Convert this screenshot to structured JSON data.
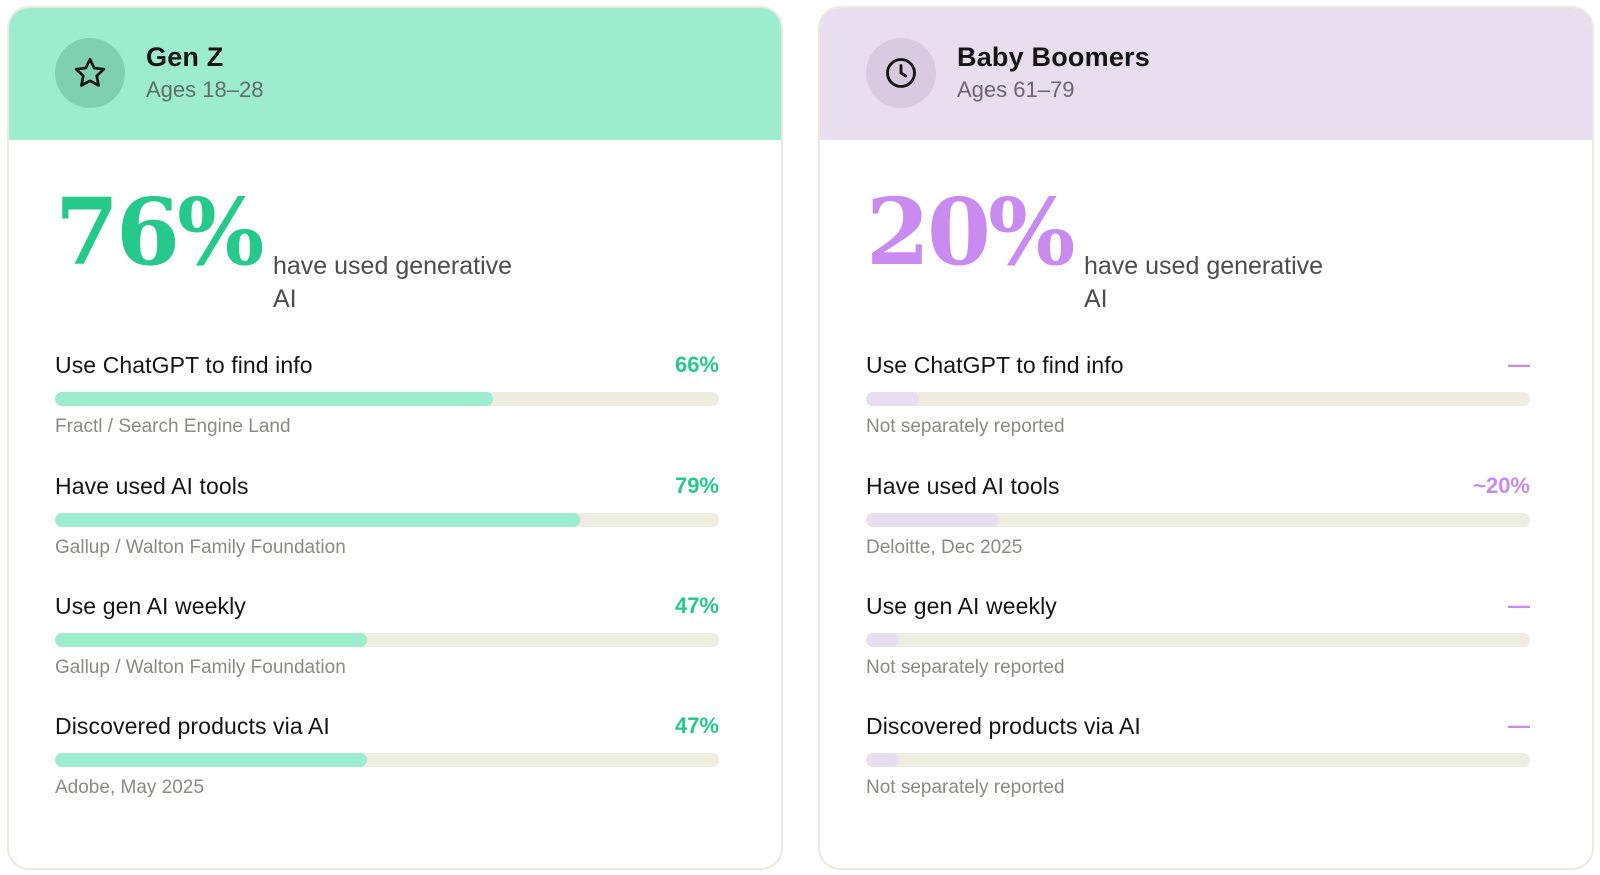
{
  "cards": [
    {
      "id": "genz",
      "icon": "star-icon",
      "title": "Gen Z",
      "subtitle": "Ages 18–28",
      "big_value": "76%",
      "big_caption": "have used generative AI",
      "accent": "#25c98b",
      "header_bg": "#9deccf",
      "metrics": [
        {
          "label": "Use ChatGPT to find info",
          "value": "66%",
          "fill_pct": 66,
          "source": "Fractl / Search Engine Land"
        },
        {
          "label": "Have used AI tools",
          "value": "79%",
          "fill_pct": 79,
          "source": "Gallup / Walton Family Foundation"
        },
        {
          "label": "Use gen AI weekly",
          "value": "47%",
          "fill_pct": 47,
          "source": "Gallup / Walton Family Foundation"
        },
        {
          "label": "Discovered products via AI",
          "value": "47%",
          "fill_pct": 47,
          "source": "Adobe, May 2025"
        }
      ]
    },
    {
      "id": "boomers",
      "icon": "clock-icon",
      "title": "Baby Boomers",
      "subtitle": "Ages 61–79",
      "big_value": "20%",
      "big_caption": "have used generative AI",
      "accent": "#c98bef",
      "header_bg": "#e9ddf0",
      "metrics": [
        {
          "label": "Use ChatGPT to find info",
          "value": "—",
          "fill_pct": 8,
          "source": "Not separately reported"
        },
        {
          "label": "Have used AI tools",
          "value": "~20%",
          "fill_pct": 20,
          "source": "Deloitte, Dec 2025"
        },
        {
          "label": "Use gen AI weekly",
          "value": "—",
          "fill_pct": 5,
          "source": "Not separately reported"
        },
        {
          "label": "Discovered products via AI",
          "value": "—",
          "fill_pct": 5,
          "source": "Not separately reported"
        }
      ]
    }
  ]
}
